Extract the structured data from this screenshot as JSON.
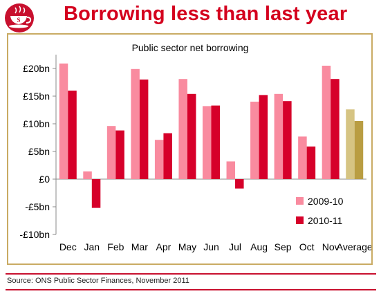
{
  "header": {
    "title": "Borrowing less than last year"
  },
  "source": "Source: ONS Public Sector Finances, November 2011",
  "colors": {
    "title": "#d4001e",
    "series_2009": "#f98b9f",
    "series_2010": "#d6002a",
    "average_2009": "#d6c483",
    "average_2010": "#b99d42",
    "frame": "#c9ab63",
    "rule": "#c8102e"
  },
  "chart_data": {
    "type": "bar",
    "title": "Public sector net borrowing",
    "xlabel": "",
    "ylabel": "",
    "categories": [
      "Dec",
      "Jan",
      "Feb",
      "Mar",
      "Apr",
      "May",
      "Jun",
      "Jul",
      "Aug",
      "Sep",
      "Oct",
      "Nov",
      "Average"
    ],
    "series": [
      {
        "name": "2009-10",
        "values": [
          20.9,
          1.4,
          9.6,
          19.9,
          7.1,
          18.1,
          13.2,
          3.2,
          14.0,
          15.4,
          7.7,
          20.5,
          12.6
        ]
      },
      {
        "name": "2010-11",
        "values": [
          16.0,
          -5.2,
          8.8,
          18.0,
          8.3,
          15.4,
          13.3,
          -1.7,
          15.2,
          14.1,
          5.9,
          18.1,
          10.5
        ]
      }
    ],
    "ylim": [
      -10,
      22
    ],
    "yticks": [
      20,
      15,
      10,
      5,
      0,
      -5,
      -10
    ],
    "ytick_labels": [
      "£20bn",
      "£15bn",
      "£10bn",
      "£5bn",
      "£0",
      "-£5bn",
      "-£10bn"
    ],
    "grid": false,
    "legend": "bottom-right"
  }
}
